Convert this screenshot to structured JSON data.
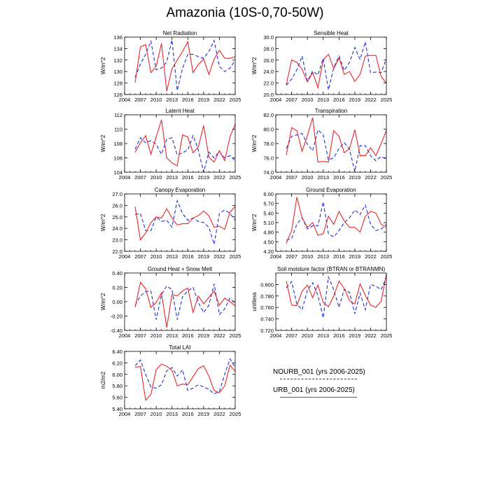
{
  "title": "Amazonia (10S-0,70-50W)",
  "legend": [
    {
      "label": "NOURB_001 (yrs 2006-2025)",
      "color": "#1f2fd6",
      "style": "dashed"
    },
    {
      "label": "URB_001 (yrs 2006-2025)",
      "color": "#e8262b",
      "style": "solid"
    }
  ],
  "chart_data": [
    {
      "type": "line",
      "title": "Net Radiation",
      "ylabel": "W/m^2",
      "xlim": [
        2004,
        2025
      ],
      "xticks": [
        "2004",
        "2007",
        "2010",
        "2013",
        "2016",
        "2019",
        "2022",
        "2025"
      ],
      "ylim": [
        126,
        136
      ],
      "yticks": [
        "126",
        "128",
        "130",
        "132",
        "134",
        "136"
      ],
      "x": [
        2006,
        2007,
        2008,
        2009,
        2010,
        2011,
        2012,
        2013,
        2014,
        2015,
        2016,
        2017,
        2018,
        2019,
        2020,
        2021,
        2022,
        2023,
        2024,
        2025
      ],
      "series": [
        {
          "name": "NOURB_001",
          "color": "#1f2fd6",
          "dashed": true,
          "values": [
            129.0,
            131.3,
            133.0,
            135.3,
            130.3,
            130.6,
            131.7,
            135.5,
            126.7,
            130.6,
            133.0,
            133.0,
            132.6,
            132.3,
            133.5,
            135.4,
            130.9,
            130.0,
            130.6,
            131.9
          ]
        },
        {
          "name": "URB_001",
          "color": "#e8262b",
          "dashed": false,
          "values": [
            128.1,
            134.3,
            134.7,
            129.8,
            130.9,
            134.9,
            126.6,
            130.5,
            132.0,
            133.5,
            135.2,
            129.8,
            131.2,
            132.2,
            129.5,
            132.2,
            133.7,
            132.3,
            132.3,
            132.6
          ]
        }
      ]
    },
    {
      "type": "line",
      "title": "Sensible Heat",
      "ylabel": "W/m^2",
      "xlim": [
        2004,
        2025
      ],
      "xticks": [
        "2004",
        "2007",
        "2010",
        "2013",
        "2016",
        "2019",
        "2022",
        "2025"
      ],
      "ylim": [
        20,
        30
      ],
      "yticks": [
        "20.0",
        "22.0",
        "24.0",
        "26.0",
        "28.0",
        "30.0"
      ],
      "x": [
        2006,
        2007,
        2008,
        2009,
        2010,
        2011,
        2012,
        2013,
        2014,
        2015,
        2016,
        2017,
        2018,
        2019,
        2020,
        2021,
        2022,
        2023,
        2024,
        2025
      ],
      "series": [
        {
          "name": "NOURB_001",
          "color": "#1f2fd6",
          "dashed": true,
          "values": [
            21.6,
            22.7,
            24.3,
            26.7,
            22.3,
            24.1,
            23.4,
            26.3,
            20.8,
            24.7,
            26.7,
            24.2,
            25.6,
            28.2,
            26.1,
            29.2,
            23.8,
            23.9,
            23.8,
            26.2
          ]
        },
        {
          "name": "URB_001",
          "color": "#e8262b",
          "dashed": false,
          "values": [
            21.7,
            26.0,
            25.6,
            24.4,
            22.2,
            23.8,
            21.2,
            26.0,
            27.0,
            24.5,
            26.4,
            23.5,
            24.0,
            22.3,
            23.5,
            26.7,
            26.8,
            26.8,
            23.1,
            22.0
          ]
        }
      ]
    },
    {
      "type": "line",
      "title": "Latent Heat",
      "ylabel": "W/m^2",
      "xlim": [
        2004,
        2025
      ],
      "xticks": [
        "2004",
        "2007",
        "2010",
        "2013",
        "2016",
        "2019",
        "2022",
        "2025"
      ],
      "ylim": [
        104,
        112
      ],
      "yticks": [
        "104",
        "106",
        "108",
        "110",
        "112"
      ],
      "x": [
        2006,
        2007,
        2008,
        2009,
        2010,
        2011,
        2012,
        2013,
        2014,
        2015,
        2016,
        2017,
        2018,
        2019,
        2020,
        2021,
        2022,
        2023,
        2024,
        2025
      ],
      "series": [
        {
          "name": "NOURB_001",
          "color": "#1f2fd6",
          "dashed": true,
          "values": [
            107.2,
            108.8,
            108.1,
            108.4,
            107.9,
            106.5,
            108.6,
            108.8,
            106.4,
            106.7,
            107.1,
            109.1,
            107.1,
            104.0,
            106.8,
            106.0,
            106.9,
            106.0,
            106.3,
            105.6
          ]
        },
        {
          "name": "URB_001",
          "color": "#e8262b",
          "dashed": false,
          "values": [
            106.8,
            108.1,
            109.1,
            106.5,
            108.9,
            111.3,
            106.0,
            105.3,
            104.9,
            109.2,
            108.9,
            106.7,
            107.5,
            110.5,
            106.1,
            105.4,
            107.0,
            105.6,
            108.9,
            110.7
          ]
        }
      ]
    },
    {
      "type": "line",
      "title": "Transpiration",
      "ylabel": "W/m^2",
      "xlim": [
        2004,
        2025
      ],
      "xticks": [
        "2004",
        "2007",
        "2010",
        "2013",
        "2016",
        "2019",
        "2022",
        "2025"
      ],
      "ylim": [
        74,
        82
      ],
      "yticks": [
        "74.0",
        "76.0",
        "78.0",
        "80.0",
        "82.0"
      ],
      "x": [
        2006,
        2007,
        2008,
        2009,
        2010,
        2011,
        2012,
        2013,
        2014,
        2015,
        2016,
        2017,
        2018,
        2019,
        2020,
        2021,
        2022,
        2023,
        2024,
        2025
      ],
      "series": [
        {
          "name": "NOURB_001",
          "color": "#1f2fd6",
          "dashed": true,
          "values": [
            77.3,
            79.0,
            79.2,
            79.4,
            77.9,
            77.0,
            79.9,
            79.2,
            75.7,
            76.0,
            77.3,
            78.1,
            77.2,
            74.1,
            77.7,
            77.7,
            76.3,
            75.6,
            76.2,
            75.8
          ]
        },
        {
          "name": "URB_001",
          "color": "#e8262b",
          "dashed": false,
          "values": [
            76.4,
            80.2,
            79.8,
            76.9,
            79.1,
            81.6,
            75.4,
            75.5,
            75.4,
            79.8,
            79.0,
            76.7,
            77.3,
            79.9,
            76.3,
            76.3,
            77.4,
            76.3,
            78.0,
            79.8
          ]
        }
      ]
    },
    {
      "type": "line",
      "title": "Canopy Evaporation",
      "ylabel": "W/m^2",
      "xlim": [
        2004,
        2025
      ],
      "xticks": [
        "2004",
        "2007",
        "2010",
        "2013",
        "2016",
        "2019",
        "2022",
        "2025"
      ],
      "ylim": [
        22,
        27
      ],
      "yticks": [
        "22.0",
        "23.0",
        "24.0",
        "25.0",
        "26.0",
        "27.0"
      ],
      "x": [
        2006,
        2007,
        2008,
        2009,
        2010,
        2011,
        2012,
        2013,
        2014,
        2015,
        2016,
        2017,
        2018,
        2019,
        2020,
        2021,
        2022,
        2023,
        2024,
        2025
      ],
      "series": [
        {
          "name": "NOURB_001",
          "color": "#1f2fd6",
          "dashed": true,
          "values": [
            25.2,
            25.3,
            23.8,
            23.8,
            25.0,
            24.6,
            24.7,
            24.1,
            26.4,
            25.3,
            24.7,
            24.9,
            24.6,
            24.5,
            24.1,
            22.6,
            25.3,
            25.6,
            25.3,
            24.7
          ]
        },
        {
          "name": "URB_001",
          "color": "#e8262b",
          "dashed": false,
          "values": [
            25.9,
            23.0,
            23.6,
            24.5,
            25.0,
            24.9,
            25.7,
            24.9,
            24.3,
            24.4,
            24.4,
            24.9,
            25.1,
            25.5,
            25.1,
            24.1,
            24.2,
            23.9,
            25.4,
            25.9
          ]
        }
      ]
    },
    {
      "type": "line",
      "title": "Ground Evaporation",
      "ylabel": "W/m^2",
      "xlim": [
        2004,
        2025
      ],
      "xticks": [
        "2004",
        "2007",
        "2010",
        "2013",
        "2016",
        "2019",
        "2022",
        "2025"
      ],
      "ylim": [
        4.2,
        6.0
      ],
      "yticks": [
        "4.20",
        "4.50",
        "4.80",
        "5.10",
        "5.40",
        "5.70",
        "6.00"
      ],
      "x": [
        2006,
        2007,
        2008,
        2009,
        2010,
        2011,
        2012,
        2013,
        2014,
        2015,
        2016,
        2017,
        2018,
        2019,
        2020,
        2021,
        2022,
        2023,
        2024,
        2025
      ],
      "series": [
        {
          "name": "NOURB_001",
          "color": "#1f2fd6",
          "dashed": true,
          "values": [
            4.55,
            4.6,
            5.05,
            5.25,
            4.9,
            5.0,
            5.0,
            5.75,
            4.75,
            4.65,
            4.85,
            5.1,
            5.25,
            5.5,
            5.35,
            5.65,
            5.05,
            4.85,
            4.9,
            5.05
          ]
        },
        {
          "name": "URB_001",
          "color": "#e8262b",
          "dashed": false,
          "values": [
            4.45,
            4.85,
            5.9,
            5.25,
            4.95,
            5.1,
            4.7,
            4.75,
            5.3,
            5.05,
            5.45,
            5.15,
            4.95,
            4.95,
            4.8,
            5.3,
            5.45,
            5.4,
            5.05,
            4.95
          ]
        }
      ]
    },
    {
      "type": "line",
      "title": "Ground Heat + Snow Melt",
      "ylabel": "W/m^2",
      "xlim": [
        2004,
        2025
      ],
      "xticks": [
        "2004",
        "2007",
        "2010",
        "2013",
        "2016",
        "2019",
        "2022",
        "2025"
      ],
      "ylim": [
        -0.4,
        0.4
      ],
      "yticks": [
        "-0.40",
        "-0.20",
        "0.00",
        "0.20",
        "0.40"
      ],
      "x": [
        2006,
        2007,
        2008,
        2009,
        2010,
        2011,
        2012,
        2013,
        2014,
        2015,
        2016,
        2017,
        2018,
        2019,
        2020,
        2021,
        2022,
        2023,
        2024,
        2025
      ],
      "series": [
        {
          "name": "NOURB_001",
          "color": "#1f2fd6",
          "dashed": true,
          "values": [
            -0.05,
            0.08,
            0.14,
            0.15,
            -0.25,
            0.1,
            0.22,
            0.17,
            -0.25,
            0.07,
            0.15,
            0.2,
            -0.01,
            -0.15,
            -0.05,
            0.25,
            -0.18,
            -0.1,
            0.05,
            -0.02
          ]
        },
        {
          "name": "URB_001",
          "color": "#e8262b",
          "dashed": false,
          "values": [
            -0.08,
            0.27,
            0.18,
            -0.08,
            -0.01,
            0.12,
            -0.36,
            0.1,
            0.08,
            0.15,
            0.19,
            -0.15,
            0.08,
            -0.03,
            0.06,
            0.15,
            -0.05,
            0.05,
            0.0,
            -0.06
          ]
        }
      ]
    },
    {
      "type": "line",
      "title": "Soil moisture factor (BTRAN or BTRANMN)",
      "ylabel": "unitless",
      "xlim": [
        2004,
        2025
      ],
      "xticks": [
        "2004",
        "2007",
        "2010",
        "2013",
        "2016",
        "2019",
        "2022",
        "2025"
      ],
      "ylim": [
        0.72,
        0.82
      ],
      "yticks": [
        "0.720",
        "0.740",
        "0.760",
        "0.780",
        "0.800"
      ],
      "x": [
        2006,
        2007,
        2008,
        2009,
        2010,
        2011,
        2012,
        2013,
        2014,
        2015,
        2016,
        2017,
        2018,
        2019,
        2020,
        2021,
        2022,
        2023,
        2024,
        2025
      ],
      "series": [
        {
          "name": "NOURB_001",
          "color": "#1f2fd6",
          "dashed": true,
          "values": [
            0.794,
            0.805,
            0.766,
            0.756,
            0.79,
            0.803,
            0.781,
            0.742,
            0.813,
            0.791,
            0.76,
            0.792,
            0.786,
            0.749,
            0.785,
            0.756,
            0.8,
            0.797,
            0.791,
            0.813
          ]
        },
        {
          "name": "URB_001",
          "color": "#e8262b",
          "dashed": false,
          "values": [
            0.806,
            0.764,
            0.763,
            0.788,
            0.799,
            0.777,
            0.799,
            0.769,
            0.761,
            0.78,
            0.806,
            0.793,
            0.772,
            0.766,
            0.801,
            0.781,
            0.764,
            0.76,
            0.771,
            0.818
          ]
        }
      ]
    },
    {
      "type": "line",
      "title": "Total LAI",
      "ylabel": "m2/m2",
      "xlim": [
        2004,
        2025
      ],
      "xticks": [
        "2004",
        "2007",
        "2010",
        "2013",
        "2016",
        "2019",
        "2022",
        "2025"
      ],
      "ylim": [
        5.4,
        6.4
      ],
      "yticks": [
        "5.40",
        "5.60",
        "5.80",
        "6.00",
        "6.20",
        "6.40"
      ],
      "x": [
        2006,
        2007,
        2008,
        2009,
        2010,
        2011,
        2012,
        2013,
        2014,
        2015,
        2016,
        2017,
        2018,
        2019,
        2020,
        2021,
        2022,
        2023,
        2024,
        2025
      ],
      "series": [
        {
          "name": "NOURB_001",
          "color": "#1f2fd6",
          "dashed": true,
          "values": [
            6.15,
            6.25,
            6.0,
            5.78,
            5.76,
            5.82,
            6.06,
            6.12,
            5.97,
            6.08,
            5.72,
            5.76,
            5.82,
            5.78,
            5.74,
            5.66,
            5.7,
            6.0,
            6.27,
            6.12
          ]
        },
        {
          "name": "URB_001",
          "color": "#e8262b",
          "dashed": false,
          "values": [
            6.12,
            6.14,
            5.55,
            5.65,
            6.08,
            6.18,
            6.14,
            6.07,
            5.8,
            5.83,
            5.82,
            5.96,
            6.1,
            6.15,
            5.97,
            5.72,
            5.68,
            5.8,
            6.16,
            6.05
          ]
        }
      ]
    }
  ]
}
